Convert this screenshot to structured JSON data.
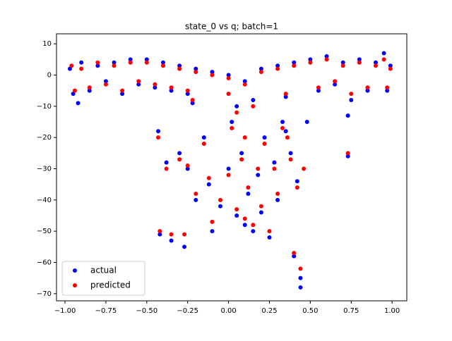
{
  "chart_data": {
    "type": "scatter",
    "title": "state_0 vs q; batch=1",
    "xlim": [
      -1.052,
      1.09
    ],
    "ylim": [
      -72.3,
      13.2
    ],
    "xticks": [
      {
        "value": -1,
        "label": "−1.00"
      },
      {
        "value": -0.75,
        "label": "−0.75"
      },
      {
        "value": -0.5,
        "label": "−0.50"
      },
      {
        "value": -0.25,
        "label": "−0.25"
      },
      {
        "value": 0,
        "label": "0.00"
      },
      {
        "value": 0.25,
        "label": "0.25"
      },
      {
        "value": 0.5,
        "label": "0.50"
      },
      {
        "value": 0.75,
        "label": "0.75"
      },
      {
        "value": 1,
        "label": "1.00"
      }
    ],
    "yticks": [
      10,
      0,
      {
        "value": -10,
        "label": "−10"
      },
      {
        "value": -20,
        "label": "−20"
      },
      {
        "value": -30,
        "label": "−30"
      },
      {
        "value": -40,
        "label": "−40"
      },
      {
        "value": -50,
        "label": "−50"
      },
      {
        "value": -60,
        "label": "−60"
      },
      {
        "value": -70,
        "label": "−70"
      }
    ],
    "legend": "lower left",
    "series": [
      {
        "name": "actual",
        "color": "#0000ff",
        "x": [
          -0.97,
          -0.95,
          -0.92,
          -0.9,
          -0.85,
          -0.8,
          -0.75,
          -0.7,
          -0.65,
          -0.6,
          -0.55,
          -0.5,
          -0.45,
          -0.4,
          -0.35,
          -0.3,
          -0.25,
          -0.2,
          -0.1,
          0,
          0.1,
          0.2,
          0.3,
          0.35,
          0.4,
          0.5,
          0.55,
          0.6,
          0.65,
          0.7,
          0.75,
          0.8,
          0.85,
          0.9,
          0.95,
          0.97,
          0.99,
          -0.43,
          -0.38,
          -0.42,
          -0.35,
          -0.3,
          -0.27,
          -0.25,
          -0.2,
          -0.15,
          -0.12,
          -0.1,
          -0.05,
          0,
          0.02,
          0.05,
          0.08,
          0.1,
          0.12,
          0.15,
          0.18,
          0.2,
          0.22,
          0.25,
          0.28,
          0.3,
          0.33,
          0.35,
          0.38,
          0.4,
          0.42,
          0.44,
          0.44,
          0.48,
          0.73,
          0.73,
          -0.22,
          0.05,
          0.15
        ],
        "values": [
          2,
          -6,
          -9,
          4,
          -5,
          3,
          -2,
          4,
          -6,
          5,
          -3,
          5,
          -4,
          4,
          -5,
          3,
          -6,
          2,
          1,
          0,
          -2,
          2,
          3,
          -7,
          4,
          5,
          -5,
          6,
          -3,
          4,
          -8,
          5,
          -5,
          4,
          7,
          -5,
          3,
          -18,
          -28,
          -51,
          -53,
          -25,
          -55,
          -30,
          -40,
          -20,
          -35,
          -50,
          -42,
          -30,
          -15,
          -45,
          -25,
          -48,
          -38,
          -50,
          -32,
          -44,
          -20,
          -52,
          -28,
          -40,
          -15,
          -18,
          -25,
          -58,
          -34,
          -65,
          -68,
          -15,
          -26,
          -13,
          -9,
          -10,
          -8
        ]
      },
      {
        "name": "predicted",
        "color": "#ff0000",
        "x": [
          -0.96,
          -0.94,
          -0.9,
          -0.85,
          -0.8,
          -0.75,
          -0.7,
          -0.65,
          -0.6,
          -0.55,
          -0.5,
          -0.45,
          -0.4,
          -0.35,
          -0.3,
          -0.25,
          -0.2,
          -0.1,
          0,
          0.1,
          0.2,
          0.3,
          0.35,
          0.4,
          0.5,
          0.55,
          0.6,
          0.65,
          0.7,
          0.75,
          0.8,
          0.85,
          0.9,
          0.95,
          0.97,
          0.99,
          -0.43,
          -0.38,
          -0.42,
          -0.35,
          -0.3,
          -0.27,
          -0.25,
          -0.2,
          -0.15,
          -0.12,
          -0.1,
          -0.05,
          0,
          0.02,
          0.05,
          0.08,
          0.1,
          0.12,
          0.15,
          0.18,
          0.2,
          0.22,
          0.25,
          0.28,
          0.3,
          0.33,
          0.36,
          0.38,
          0.4,
          0.42,
          0.44,
          0.46,
          0.73,
          -0.22,
          0.05,
          0.15,
          0.1,
          0
        ],
        "values": [
          3,
          -5,
          2,
          -4,
          4,
          -3,
          3,
          -5,
          4,
          -2,
          4,
          -3,
          3,
          -4,
          2,
          -5,
          1,
          0,
          -1,
          -3,
          1,
          2,
          -6,
          3,
          4,
          -4,
          5,
          -2,
          3,
          -6,
          4,
          -4,
          3,
          5,
          -4,
          2,
          -20,
          -30,
          -50,
          -51,
          -27,
          -51,
          -29,
          -38,
          -22,
          -33,
          -47,
          -40,
          -32,
          -17,
          -43,
          -27,
          -46,
          -36,
          -48,
          -30,
          -42,
          -22,
          -50,
          -30,
          -38,
          -17,
          -20,
          -27,
          -57,
          -36,
          -62,
          -30,
          -25,
          -8,
          -12,
          -10,
          -20,
          -6
        ]
      }
    ]
  }
}
